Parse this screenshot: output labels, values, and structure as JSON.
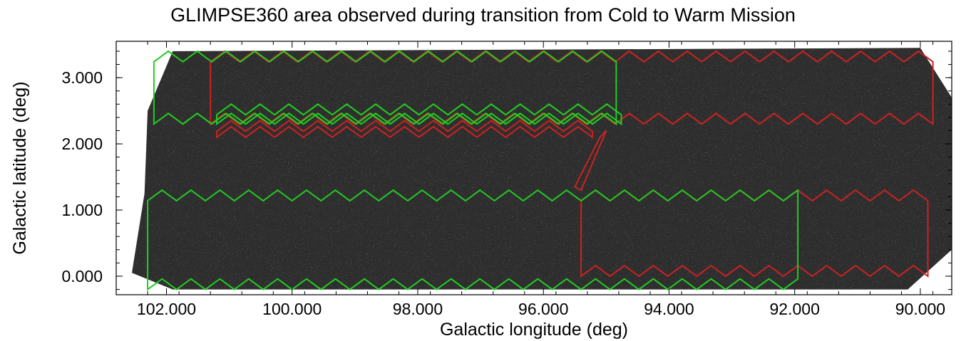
{
  "chart_data": {
    "type": "map",
    "title": "GLIMPSE360 area observed during transition from Cold to Warm Mission",
    "xlabel": "Galactic longitude (deg)",
    "ylabel": "Galactic latitude (deg)",
    "xlim": [
      102.8,
      89.5
    ],
    "ylim": [
      -0.28,
      3.55
    ],
    "x_ticks": [
      102.0,
      100.0,
      98.0,
      96.0,
      94.0,
      92.0,
      90.0
    ],
    "x_tick_labels": [
      "102.000",
      "100.000",
      "98.000",
      "96.000",
      "94.000",
      "92.000",
      "90.000"
    ],
    "y_ticks": [
      0.0,
      1.0,
      2.0,
      3.0
    ],
    "y_tick_labels": [
      "0.000",
      "1.000",
      "2.000",
      "3.000"
    ],
    "background": "grayscale infrared star field image",
    "colors": {
      "cold_mission": "#cc2222",
      "warm_mission": "#22cc22",
      "image": "#2d2d2d"
    },
    "regions": [
      {
        "color": "red",
        "strip": "upper",
        "l": [
          101.3,
          89.6
        ],
        "b": [
          2.3,
          3.4
        ]
      },
      {
        "color": "red",
        "strip": "upper-lower-edge",
        "l": [
          101.2,
          95.1
        ],
        "b": [
          2.1,
          2.35
        ]
      },
      {
        "color": "red",
        "strip": "connector",
        "l": [
          95.4,
          95.0
        ],
        "b": [
          1.3,
          2.2
        ]
      },
      {
        "color": "red",
        "strip": "lower",
        "l": [
          95.4,
          89.7
        ],
        "b": [
          0.0,
          1.3
        ]
      },
      {
        "color": "green",
        "strip": "upper",
        "l": [
          102.2,
          94.7
        ],
        "b": [
          2.3,
          3.4
        ]
      },
      {
        "color": "green",
        "strip": "middle",
        "l": [
          101.2,
          94.7
        ],
        "b": [
          2.3,
          2.6
        ]
      },
      {
        "color": "green",
        "strip": "lower",
        "l": [
          102.3,
          91.8
        ],
        "b": [
          -0.2,
          1.3
        ]
      }
    ]
  }
}
